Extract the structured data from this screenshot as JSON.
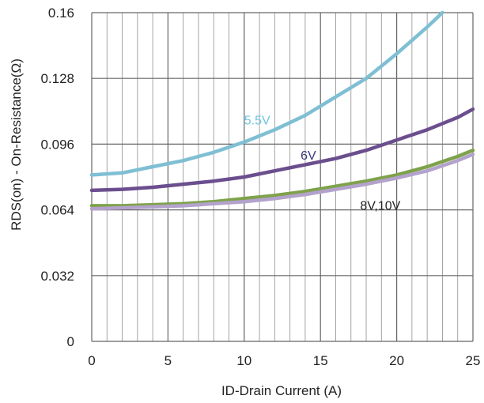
{
  "chart_data": {
    "type": "line",
    "xlabel": "ID-Drain Current (A)",
    "ylabel": "RDS(on) - On-Resistance(Ω)",
    "xlim": [
      0,
      25
    ],
    "ylim": [
      0,
      0.16
    ],
    "x_ticks": [
      "0",
      "5",
      "10",
      "15",
      "20",
      "25"
    ],
    "y_ticks": [
      "0",
      "0.032",
      "0.064",
      "0.096",
      "0.128",
      "0.16"
    ],
    "x_tick_values": [
      0,
      5,
      10,
      15,
      20,
      25
    ],
    "y_tick_values": [
      0,
      0.032,
      0.064,
      0.096,
      0.128,
      0.16
    ],
    "grid": true,
    "series": [
      {
        "name": "5.5V",
        "color": "#7fbfd3",
        "label_color": "#6cc6e0",
        "x": [
          0,
          2,
          4,
          6,
          8,
          10,
          12,
          14,
          16,
          18,
          20,
          22,
          23
        ],
        "y": [
          0.081,
          0.082,
          0.085,
          0.088,
          0.092,
          0.097,
          0.103,
          0.11,
          0.119,
          0.128,
          0.14,
          0.153,
          0.16
        ]
      },
      {
        "name": "6V",
        "color": "#6b4e8e",
        "label_color": "#3e3a80",
        "x": [
          0,
          2,
          4,
          6,
          8,
          10,
          12,
          14,
          16,
          18,
          20,
          22,
          24,
          25
        ],
        "y": [
          0.0735,
          0.074,
          0.075,
          0.0765,
          0.078,
          0.08,
          0.083,
          0.086,
          0.089,
          0.093,
          0.098,
          0.103,
          0.109,
          0.113
        ]
      },
      {
        "name": "8V",
        "color": "#7ea24a",
        "x": [
          0,
          2,
          4,
          6,
          8,
          10,
          12,
          14,
          16,
          18,
          20,
          22,
          24,
          25
        ],
        "y": [
          0.066,
          0.066,
          0.0665,
          0.067,
          0.068,
          0.0695,
          0.071,
          0.073,
          0.0755,
          0.078,
          0.081,
          0.085,
          0.09,
          0.093
        ]
      },
      {
        "name": "10V",
        "color": "#b3a2cc",
        "x": [
          0,
          2,
          4,
          6,
          8,
          10,
          12,
          14,
          16,
          18,
          20,
          22,
          24,
          25
        ],
        "y": [
          0.0645,
          0.065,
          0.0655,
          0.066,
          0.067,
          0.068,
          0.0695,
          0.0715,
          0.074,
          0.0765,
          0.0795,
          0.083,
          0.088,
          0.091
        ]
      }
    ],
    "annotations": [
      {
        "text": "5.5V",
        "x": 10,
        "y": 0.1055,
        "color": "#6cc6e0"
      },
      {
        "text": "6V",
        "x": 13.7,
        "y": 0.0885,
        "color": "#3e3a80"
      },
      {
        "text": "8V,10V",
        "x": 17.6,
        "y": 0.064,
        "color": "#222222"
      }
    ]
  }
}
